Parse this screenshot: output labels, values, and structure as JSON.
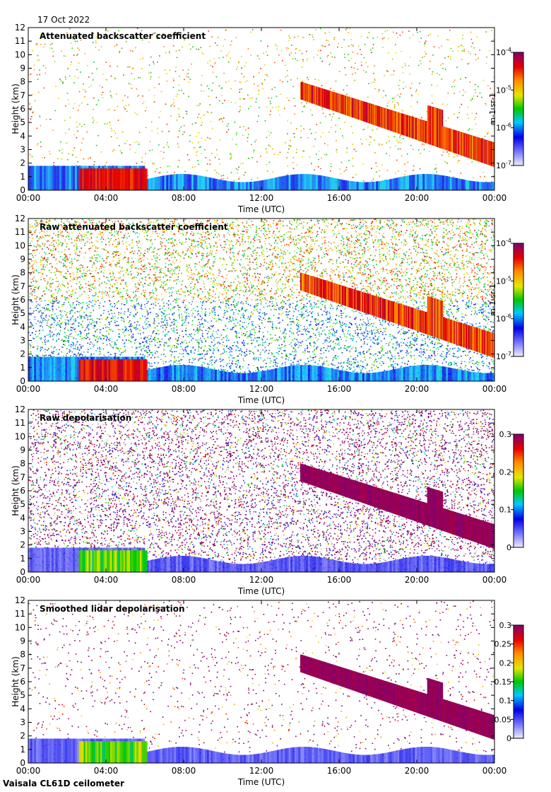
{
  "header": {
    "date": "17 Oct 2022"
  },
  "footer": {
    "instrument": "Vaisala CL61D ceilometer"
  },
  "chart_data": [
    {
      "type": "heatmap",
      "title": "Attenuated backscatter coefficient",
      "xlabel": "Time (UTC)",
      "ylabel": "Height (km)",
      "x_ticks": [
        "00:00",
        "04:00",
        "08:00",
        "12:00",
        "16:00",
        "20:00",
        "00:00"
      ],
      "x_range_hours": [
        0,
        24
      ],
      "y_ticks": [
        0,
        1,
        2,
        3,
        4,
        5,
        6,
        7,
        8,
        9,
        10,
        11,
        12
      ],
      "ylim": [
        0,
        12
      ],
      "colorbar": {
        "scale": "log",
        "range": [
          1e-07,
          0.0001
        ],
        "ticks": [
          "10^-7",
          "10^-6",
          "10^-5",
          "10^-4"
        ],
        "unit": "m-1 sr-1"
      },
      "noise": "sparse",
      "features": [
        {
          "desc": "boundary layer aerosol",
          "time": [
            0,
            24
          ],
          "height": [
            0,
            1.8
          ]
        },
        {
          "desc": "low cloud",
          "time": [
            2,
            6
          ],
          "height": [
            0.3,
            2
          ]
        },
        {
          "desc": "descending cloud layer",
          "time": [
            14,
            24
          ],
          "top_km": 8,
          "base_km": 2
        }
      ]
    },
    {
      "type": "heatmap",
      "title": "Raw attenuated backscatter coefficient",
      "xlabel": "Time (UTC)",
      "ylabel": "Height (km)",
      "x_ticks": [
        "00:00",
        "04:00",
        "08:00",
        "12:00",
        "16:00",
        "20:00",
        "00:00"
      ],
      "x_range_hours": [
        0,
        24
      ],
      "y_ticks": [
        0,
        1,
        2,
        3,
        4,
        5,
        6,
        7,
        8,
        9,
        10,
        11,
        12
      ],
      "ylim": [
        0,
        12
      ],
      "colorbar": {
        "scale": "log",
        "range": [
          1e-07,
          0.0001
        ],
        "ticks": [
          "10^-7",
          "10^-6",
          "10^-5",
          "10^-4"
        ],
        "unit": "m-1 sr-1"
      },
      "noise": "dense"
    },
    {
      "type": "heatmap",
      "title": "Raw depolarisation",
      "xlabel": "Time (UTC)",
      "ylabel": "Height (km)",
      "x_ticks": [
        "00:00",
        "04:00",
        "08:00",
        "12:00",
        "16:00",
        "20:00",
        "00:00"
      ],
      "x_range_hours": [
        0,
        24
      ],
      "y_ticks": [
        0,
        1,
        2,
        3,
        4,
        5,
        6,
        7,
        8,
        9,
        10,
        11,
        12
      ],
      "ylim": [
        0,
        12
      ],
      "colorbar": {
        "scale": "linear",
        "range": [
          0,
          0.3
        ],
        "ticks": [
          "0",
          "0.1",
          "0.2",
          "0.3"
        ],
        "unit": ""
      },
      "noise": "depol-dense"
    },
    {
      "type": "heatmap",
      "title": "Smoothed lidar depolarisation",
      "xlabel": "Time (UTC)",
      "ylabel": "Height (km)",
      "x_ticks": [
        "00:00",
        "04:00",
        "08:00",
        "12:00",
        "16:00",
        "20:00",
        "00:00"
      ],
      "x_range_hours": [
        0,
        24
      ],
      "y_ticks": [
        0,
        1,
        2,
        3,
        4,
        5,
        6,
        7,
        8,
        9,
        10,
        11,
        12
      ],
      "ylim": [
        0,
        12
      ],
      "colorbar": {
        "scale": "linear",
        "range": [
          0,
          0.3
        ],
        "ticks": [
          "0",
          "0.05",
          "0.1",
          "0.15",
          "0.2",
          "0.25",
          "0.3"
        ],
        "unit": ""
      },
      "noise": "depol-sparse"
    }
  ]
}
